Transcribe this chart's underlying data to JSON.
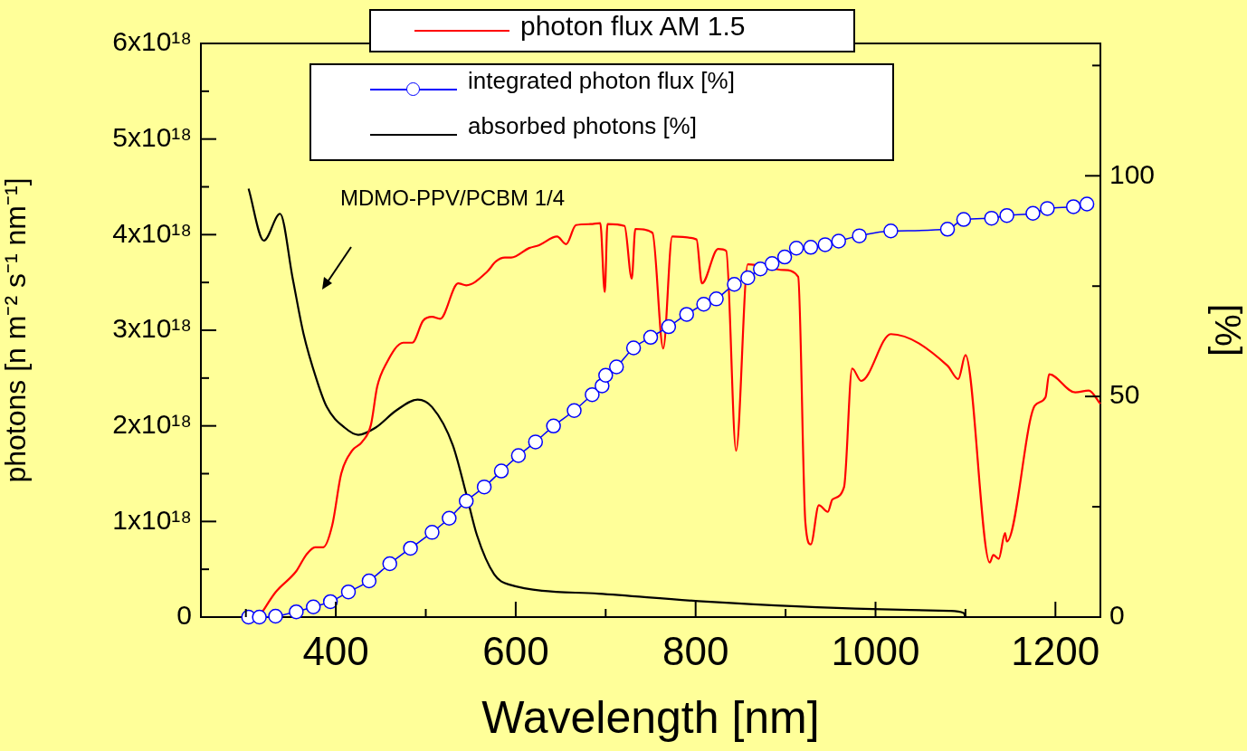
{
  "chart_data": {
    "type": "line",
    "xlabel": "Wavelength [nm]",
    "ylabel": "photons [n m⁻² s⁻¹ nm⁻¹]",
    "y2label": "[%]",
    "annotations": [
      "MDMO-PPV/PCBM 1/4"
    ],
    "xlim": [
      250,
      1250
    ],
    "xticks": [
      {
        "value": 300,
        "label": null
      },
      400,
      {
        "value": 500,
        "label": null
      },
      600,
      {
        "value": 700,
        "label": null
      },
      800,
      {
        "value": 900,
        "label": null
      },
      1000,
      {
        "value": 1100,
        "label": null
      },
      1200
    ],
    "ylim": [
      0,
      6e+18
    ],
    "yticks": [
      {
        "value": 0,
        "label": "0"
      },
      {
        "value": 5e+17,
        "label": null
      },
      {
        "value": 1e+18,
        "label": "1x10¹⁸"
      },
      {
        "value": 1.5e+18,
        "label": null
      },
      {
        "value": 2e+18,
        "label": "2x10¹⁸"
      },
      {
        "value": 2.5e+18,
        "label": null
      },
      {
        "value": 3e+18,
        "label": "3x10¹⁸"
      },
      {
        "value": 3.5e+18,
        "label": null
      },
      {
        "value": 4e+18,
        "label": "4x10¹⁸"
      },
      {
        "value": 4.5e+18,
        "label": null
      },
      {
        "value": 5e+18,
        "label": "5x10¹⁸"
      },
      {
        "value": 5.5e+18,
        "label": null
      },
      {
        "value": 6e+18,
        "label": "6x10¹⁸"
      }
    ],
    "y2lim": [
      0,
      130
    ],
    "y2ticks": [
      0,
      {
        "value": 25,
        "label": null
      },
      50,
      {
        "value": 75,
        "label": null
      },
      100,
      {
        "value": 125,
        "label": null
      }
    ],
    "legend": "top",
    "series": [
      {
        "name": "photon flux AM 1.5",
        "color": "#ff0000",
        "marker": "none",
        "x": [
          318,
          333,
          356,
          367,
          377,
          386,
          396,
          406,
          418,
          429,
          439,
          446,
          456,
          475,
          485,
          497,
          507,
          516,
          536,
          545,
          568,
          578,
          588,
          595,
          615,
          626,
          646,
          656,
          667,
          683,
          694,
          699,
          702,
          721,
          729,
          733,
          752,
          764,
          774,
          801,
          807,
          825,
          834,
          845,
          858,
          898,
          914,
          922,
          928,
          937,
          947,
          952,
          965,
          974,
          984,
          1017,
          1080,
          1092,
          1100,
          1127,
          1131,
          1137,
          1144,
          1146,
          1177,
          1189,
          1193,
          1222,
          1237,
          1250
        ],
        "values": [
          5e+16,
          2.6e+17,
          4.8e+17,
          6.5e+17,
          7.3e+17,
          7.3e+17,
          9.6e+17,
          1.5e+18,
          1.74e+18,
          1.83e+18,
          2.01e+18,
          2.41e+18,
          2.65e+18,
          2.87e+18,
          2.87e+18,
          3.1e+18,
          3.14e+18,
          3.12e+18,
          3.49e+18,
          3.47e+18,
          3.61e+18,
          3.72e+18,
          3.76e+18,
          3.76e+18,
          3.86e+18,
          3.89e+18,
          3.98e+18,
          3.9e+18,
          4.1e+18,
          4.11e+18,
          4.12e+18,
          3.4e+18,
          4.11e+18,
          4.09e+18,
          3.54e+18,
          4.06e+18,
          4.02e+18,
          2.81e+18,
          3.98e+18,
          3.95e+18,
          3.49e+18,
          3.85e+18,
          3.83e+18,
          1.74e+18,
          3.69e+18,
          3.63e+18,
          3.56e+18,
          9.9e+17,
          7.6e+17,
          1.17e+18,
          1.1e+18,
          1.23e+18,
          1.36e+18,
          2.6e+18,
          2.47e+18,
          2.96e+18,
          2.63e+18,
          2.49e+18,
          2.74e+18,
          5.7e+17,
          6.5e+17,
          6.1e+17,
          8.8e+17,
          7.9e+17,
          2.21e+18,
          2.3e+18,
          2.54e+18,
          2.35e+18,
          2.37e+18,
          2.23e+18
        ]
      },
      {
        "name": "integrated photon flux [%]",
        "color": "#0000ff",
        "marker": "circle",
        "axis": "y2",
        "x": [
          303,
          315,
          333,
          356,
          375,
          394,
          414,
          437,
          460,
          483,
          507,
          526,
          545,
          565,
          584,
          603,
          622,
          642,
          665,
          685,
          696,
          700,
          712,
          731,
          750,
          770,
          790,
          809,
          823,
          843,
          858,
          872,
          885,
          899,
          912,
          928,
          944,
          959,
          982,
          1017,
          1080,
          1098,
          1129,
          1146,
          1175,
          1191,
          1220,
          1235
        ],
        "values": [
          0,
          0,
          0.2,
          1.2,
          2.3,
          3.5,
          5.7,
          8.2,
          12.1,
          15.6,
          19.2,
          22.4,
          26.3,
          29.5,
          33.1,
          36.6,
          39.7,
          43.3,
          46.8,
          50.4,
          52.4,
          54.8,
          56.7,
          61,
          63.4,
          65.8,
          68.6,
          70.9,
          72.1,
          75.4,
          76.9,
          78.9,
          80.1,
          81.6,
          83.6,
          83.8,
          84.4,
          85.2,
          86.4,
          87.5,
          87.9,
          90.1,
          90.4,
          91,
          91.5,
          92.6,
          93,
          93.6
        ]
      },
      {
        "name": "absorbed photons [%]",
        "color": "#000000",
        "marker": "none",
        "axis": "y2",
        "x": [
          303,
          320,
          338,
          352,
          364,
          379,
          390,
          410,
          425,
          444,
          467,
          491,
          507,
          530,
          545,
          557,
          576,
          592,
          692,
          812,
          997,
          1082,
          1098,
          1100
        ],
        "values": [
          97.1,
          85.3,
          91.4,
          76.8,
          64.3,
          53.6,
          47.6,
          42.9,
          41.3,
          42.9,
          46.8,
          49.3,
          47.6,
          39.0,
          27.9,
          18.5,
          9.7,
          7.4,
          5.3,
          3.5,
          1.8,
          1.4,
          0.9,
          0
        ]
      }
    ]
  }
}
